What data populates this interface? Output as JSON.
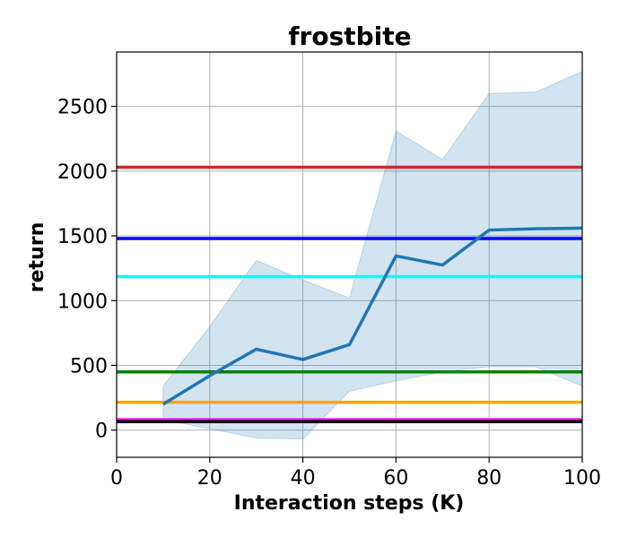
{
  "chart_data": {
    "type": "line",
    "title": "frostbite",
    "xlabel": "Interaction steps (K)",
    "ylabel": "return",
    "xlim": [
      0,
      100
    ],
    "ylim": [
      -210,
      2920
    ],
    "xticks": [
      0,
      20,
      40,
      60,
      80,
      100
    ],
    "yticks": [
      0,
      500,
      1000,
      1500,
      2000,
      2500
    ],
    "grid": true,
    "series": [
      {
        "color": "#1f77b4",
        "x": [
          10,
          20,
          30,
          40,
          50,
          60,
          70,
          80,
          90,
          100
        ],
        "y": [
          200,
          420,
          625,
          545,
          660,
          1345,
          1275,
          1545,
          1555,
          1560
        ],
        "band_low": [
          80,
          10,
          -60,
          -70,
          300,
          380,
          450,
          490,
          490,
          340
        ],
        "band_high": [
          340,
          800,
          1310,
          1160,
          1020,
          2310,
          2090,
          2600,
          2610,
          2770
        ]
      }
    ],
    "reference_lines": [
      {
        "y": 2030,
        "color": "#d62728"
      },
      {
        "y": 1480,
        "color": "#0000ff"
      },
      {
        "y": 1185,
        "color": "#00ffff"
      },
      {
        "y": 450,
        "color": "#008000"
      },
      {
        "y": 215,
        "color": "#ffa500"
      },
      {
        "y": 80,
        "color": "#ff00ff"
      },
      {
        "y": 65,
        "color": "#000000"
      }
    ]
  }
}
